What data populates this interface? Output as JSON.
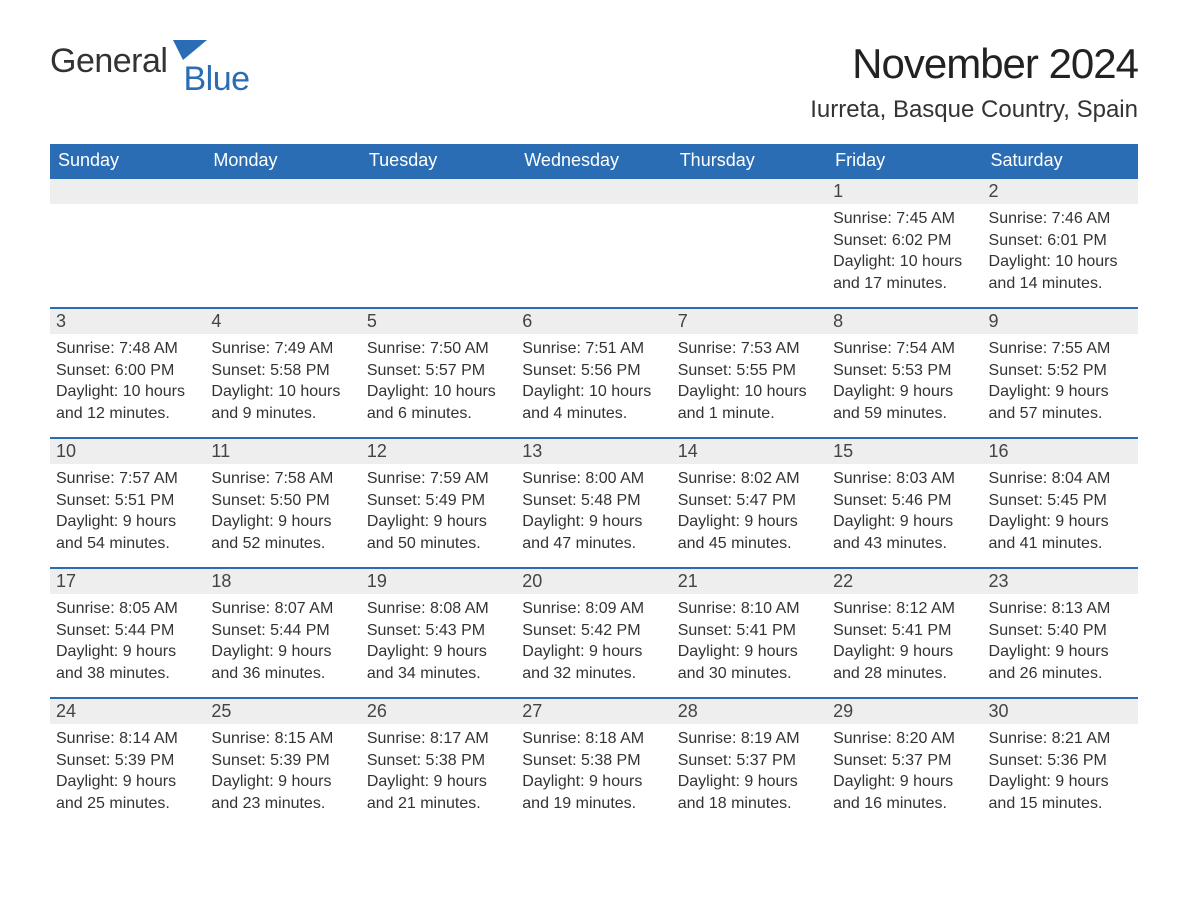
{
  "brand": {
    "part1": "General",
    "part2": "Blue"
  },
  "header": {
    "title": "November 2024",
    "location": "Iurreta, Basque Country, Spain"
  },
  "calendar": {
    "day_headers": [
      "Sunday",
      "Monday",
      "Tuesday",
      "Wednesday",
      "Thursday",
      "Friday",
      "Saturday"
    ],
    "header_bg": "#2a6db5",
    "header_fg": "#ffffff",
    "daynum_bg": "#eeeeee",
    "accent_border": "#2a6db5",
    "text_color": "#333333",
    "weeks": [
      [
        null,
        null,
        null,
        null,
        null,
        {
          "n": "1",
          "sunrise": "7:45 AM",
          "sunset": "6:02 PM",
          "daylight": "10 hours and 17 minutes."
        },
        {
          "n": "2",
          "sunrise": "7:46 AM",
          "sunset": "6:01 PM",
          "daylight": "10 hours and 14 minutes."
        }
      ],
      [
        {
          "n": "3",
          "sunrise": "7:48 AM",
          "sunset": "6:00 PM",
          "daylight": "10 hours and 12 minutes."
        },
        {
          "n": "4",
          "sunrise": "7:49 AM",
          "sunset": "5:58 PM",
          "daylight": "10 hours and 9 minutes."
        },
        {
          "n": "5",
          "sunrise": "7:50 AM",
          "sunset": "5:57 PM",
          "daylight": "10 hours and 6 minutes."
        },
        {
          "n": "6",
          "sunrise": "7:51 AM",
          "sunset": "5:56 PM",
          "daylight": "10 hours and 4 minutes."
        },
        {
          "n": "7",
          "sunrise": "7:53 AM",
          "sunset": "5:55 PM",
          "daylight": "10 hours and 1 minute."
        },
        {
          "n": "8",
          "sunrise": "7:54 AM",
          "sunset": "5:53 PM",
          "daylight": "9 hours and 59 minutes."
        },
        {
          "n": "9",
          "sunrise": "7:55 AM",
          "sunset": "5:52 PM",
          "daylight": "9 hours and 57 minutes."
        }
      ],
      [
        {
          "n": "10",
          "sunrise": "7:57 AM",
          "sunset": "5:51 PM",
          "daylight": "9 hours and 54 minutes."
        },
        {
          "n": "11",
          "sunrise": "7:58 AM",
          "sunset": "5:50 PM",
          "daylight": "9 hours and 52 minutes."
        },
        {
          "n": "12",
          "sunrise": "7:59 AM",
          "sunset": "5:49 PM",
          "daylight": "9 hours and 50 minutes."
        },
        {
          "n": "13",
          "sunrise": "8:00 AM",
          "sunset": "5:48 PM",
          "daylight": "9 hours and 47 minutes."
        },
        {
          "n": "14",
          "sunrise": "8:02 AM",
          "sunset": "5:47 PM",
          "daylight": "9 hours and 45 minutes."
        },
        {
          "n": "15",
          "sunrise": "8:03 AM",
          "sunset": "5:46 PM",
          "daylight": "9 hours and 43 minutes."
        },
        {
          "n": "16",
          "sunrise": "8:04 AM",
          "sunset": "5:45 PM",
          "daylight": "9 hours and 41 minutes."
        }
      ],
      [
        {
          "n": "17",
          "sunrise": "8:05 AM",
          "sunset": "5:44 PM",
          "daylight": "9 hours and 38 minutes."
        },
        {
          "n": "18",
          "sunrise": "8:07 AM",
          "sunset": "5:44 PM",
          "daylight": "9 hours and 36 minutes."
        },
        {
          "n": "19",
          "sunrise": "8:08 AM",
          "sunset": "5:43 PM",
          "daylight": "9 hours and 34 minutes."
        },
        {
          "n": "20",
          "sunrise": "8:09 AM",
          "sunset": "5:42 PM",
          "daylight": "9 hours and 32 minutes."
        },
        {
          "n": "21",
          "sunrise": "8:10 AM",
          "sunset": "5:41 PM",
          "daylight": "9 hours and 30 minutes."
        },
        {
          "n": "22",
          "sunrise": "8:12 AM",
          "sunset": "5:41 PM",
          "daylight": "9 hours and 28 minutes."
        },
        {
          "n": "23",
          "sunrise": "8:13 AM",
          "sunset": "5:40 PM",
          "daylight": "9 hours and 26 minutes."
        }
      ],
      [
        {
          "n": "24",
          "sunrise": "8:14 AM",
          "sunset": "5:39 PM",
          "daylight": "9 hours and 25 minutes."
        },
        {
          "n": "25",
          "sunrise": "8:15 AM",
          "sunset": "5:39 PM",
          "daylight": "9 hours and 23 minutes."
        },
        {
          "n": "26",
          "sunrise": "8:17 AM",
          "sunset": "5:38 PM",
          "daylight": "9 hours and 21 minutes."
        },
        {
          "n": "27",
          "sunrise": "8:18 AM",
          "sunset": "5:38 PM",
          "daylight": "9 hours and 19 minutes."
        },
        {
          "n": "28",
          "sunrise": "8:19 AM",
          "sunset": "5:37 PM",
          "daylight": "9 hours and 18 minutes."
        },
        {
          "n": "29",
          "sunrise": "8:20 AM",
          "sunset": "5:37 PM",
          "daylight": "9 hours and 16 minutes."
        },
        {
          "n": "30",
          "sunrise": "8:21 AM",
          "sunset": "5:36 PM",
          "daylight": "9 hours and 15 minutes."
        }
      ]
    ],
    "labels": {
      "sunrise": "Sunrise: ",
      "sunset": "Sunset: ",
      "daylight": "Daylight: "
    }
  }
}
